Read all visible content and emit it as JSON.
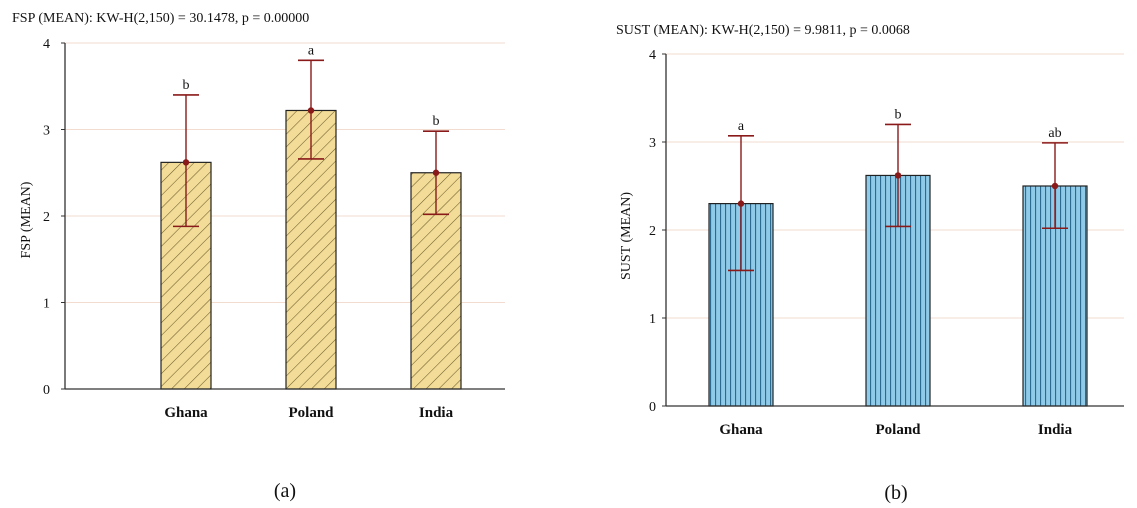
{
  "colors": {
    "a_fill": "#f2dc98",
    "a_hatch": "#6e5d2c",
    "b_fill": "#8fcbe8",
    "b_hatch": "#205f85",
    "bar_edge": "#222222",
    "error_bar": "#8a1a1a",
    "grid": "#f1dccf",
    "axis": "#333333"
  },
  "chart_data": [
    {
      "type": "bar",
      "title": "FSP (MEAN):  KW-H(2,150) = 30.1478, p = 0.00000",
      "ylabel": "FSP (MEAN)",
      "xlabel": "",
      "caption": "(a)",
      "categories": [
        "Ghana",
        "Poland",
        "India"
      ],
      "values": [
        2.62,
        3.22,
        2.5
      ],
      "error_low": [
        1.88,
        2.66,
        2.02
      ],
      "error_high": [
        3.4,
        3.8,
        2.98
      ],
      "significance": [
        "b",
        "a",
        "b"
      ],
      "ylim": [
        0,
        4
      ],
      "yticks": [
        "0",
        "1",
        "2",
        "3",
        "4"
      ],
      "grid": true,
      "legend": "none",
      "pattern": "diagonal-hatch"
    },
    {
      "type": "bar",
      "title": "SUST (MEAN):  KW-H(2,150) = 9.9811, p = 0.0068",
      "ylabel": "SUST (MEAN)",
      "xlabel": "",
      "caption": "(b)",
      "categories": [
        "Ghana",
        "Poland",
        "India"
      ],
      "values": [
        2.3,
        2.62,
        2.5
      ],
      "error_low": [
        1.54,
        2.04,
        2.02
      ],
      "error_high": [
        3.07,
        3.2,
        2.99
      ],
      "significance": [
        "a",
        "b",
        "ab"
      ],
      "ylim": [
        0,
        4
      ],
      "yticks": [
        "0",
        "1",
        "2",
        "3",
        "4"
      ],
      "grid": true,
      "legend": "none",
      "pattern": "vertical-hatch"
    }
  ]
}
